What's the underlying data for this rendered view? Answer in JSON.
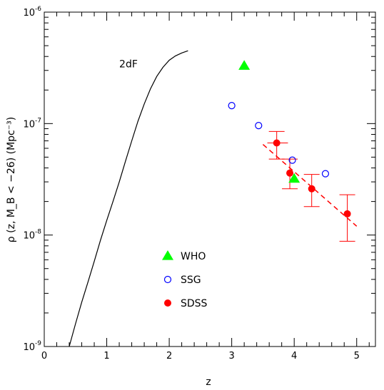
{
  "chart_data": {
    "type": "scatter",
    "title": "",
    "xlabel": "z",
    "ylabel": "ρ (z, M_B < −26) (Mpc⁻³)",
    "xlim": [
      0,
      5.3
    ],
    "ylim": [
      1e-09,
      1e-06
    ],
    "yscale": "log",
    "grid": false,
    "x_ticks": [
      "0",
      "1",
      "2",
      "3",
      "4",
      "5"
    ],
    "y_ticks": [
      {
        "value": 1e-09,
        "base": "10",
        "exp": "-9"
      },
      {
        "value": 1e-08,
        "base": "10",
        "exp": "-8"
      },
      {
        "value": 1e-07,
        "base": "10",
        "exp": "-7"
      },
      {
        "value": 1e-06,
        "base": "10",
        "exp": "-6"
      }
    ],
    "curve": {
      "label": "2dF",
      "x": [
        0.4,
        0.5,
        0.6,
        0.7,
        0.8,
        0.9,
        1.0,
        1.1,
        1.2,
        1.3,
        1.4,
        1.5,
        1.6,
        1.7,
        1.8,
        1.9,
        2.0,
        2.1,
        2.2,
        2.3
      ],
      "y": [
        1e-09,
        1.6e-09,
        2.5e-09,
        3.8e-09,
        5.8e-09,
        9e-09,
        1.35e-08,
        2e-08,
        3e-08,
        4.6e-08,
        7e-08,
        1.05e-07,
        1.5e-07,
        2.05e-07,
        2.65e-07,
        3.2e-07,
        3.7e-07,
        4.05e-07,
        4.3e-07,
        4.5e-07
      ]
    },
    "fit_line": {
      "x": [
        3.5,
        5.0
      ],
      "y": [
        6.5e-08,
        1.2e-08
      ],
      "color": "#ff0000"
    },
    "series": [
      {
        "name": "WHO",
        "marker": "triangle",
        "color": "#00ff00",
        "x": [
          3.2,
          4.0
        ],
        "y": [
          3.3e-07,
          3.2e-08
        ]
      },
      {
        "name": "SSG",
        "marker": "open-circle",
        "color": "#0000ff",
        "x": [
          3.0,
          3.43,
          3.97,
          4.5
        ],
        "y": [
          1.45e-07,
          9.6e-08,
          4.7e-08,
          3.55e-08
        ]
      },
      {
        "name": "SDSS",
        "marker": "filled-circle",
        "color": "#ff0000",
        "x": [
          3.72,
          3.93,
          4.28,
          4.85
        ],
        "y": [
          6.7e-08,
          3.6e-08,
          2.6e-08,
          1.55e-08
        ],
        "y_err_low": [
          4.8e-08,
          2.6e-08,
          1.8e-08,
          8.8e-09
        ],
        "y_err_high": [
          8.5e-08,
          4.8e-08,
          3.5e-08,
          2.3e-08
        ],
        "x_err_low": [
          3.57,
          null,
          null,
          null
        ],
        "x_err_high": [
          3.9,
          null,
          null,
          null
        ]
      }
    ],
    "legend": {
      "position": "lower-middle",
      "entries": [
        {
          "label": "WHO",
          "marker": "triangle",
          "color": "#00ff00"
        },
        {
          "label": "SSG",
          "marker": "open-circle",
          "color": "#0000ff"
        },
        {
          "label": "SDSS",
          "marker": "filled-circle",
          "color": "#ff0000"
        }
      ]
    }
  }
}
